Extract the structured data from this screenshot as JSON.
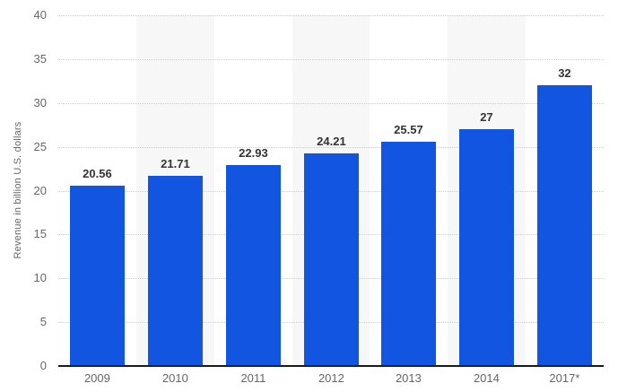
{
  "chart_data": {
    "type": "bar",
    "title": "",
    "categories": [
      "2009",
      "2010",
      "2011",
      "2012",
      "2013",
      "2014",
      "2017*"
    ],
    "values": [
      20.56,
      21.71,
      22.93,
      24.21,
      25.57,
      27,
      32
    ],
    "value_labels": [
      "20.56",
      "21.71",
      "22.93",
      "24.21",
      "25.57",
      "27",
      "32"
    ],
    "series_name": "Revenue",
    "xlabel": "",
    "ylabel": "Revenue in billion U.S. dollars",
    "ylim": [
      0,
      40
    ],
    "yticks": [
      0,
      5,
      10,
      15,
      20,
      25,
      30,
      35,
      40
    ],
    "grid": "horizontal-dotted",
    "legend": "none",
    "column_stripes": "alternating, even columns shaded",
    "colors": {
      "bar": "#1155e0",
      "column_stripe": "#f7f7f7",
      "gridline": "#cccccc",
      "axis_line": "#1a1a1a",
      "tick_label": "#666666",
      "value_label": "#333333",
      "background": "#ffffff"
    }
  }
}
